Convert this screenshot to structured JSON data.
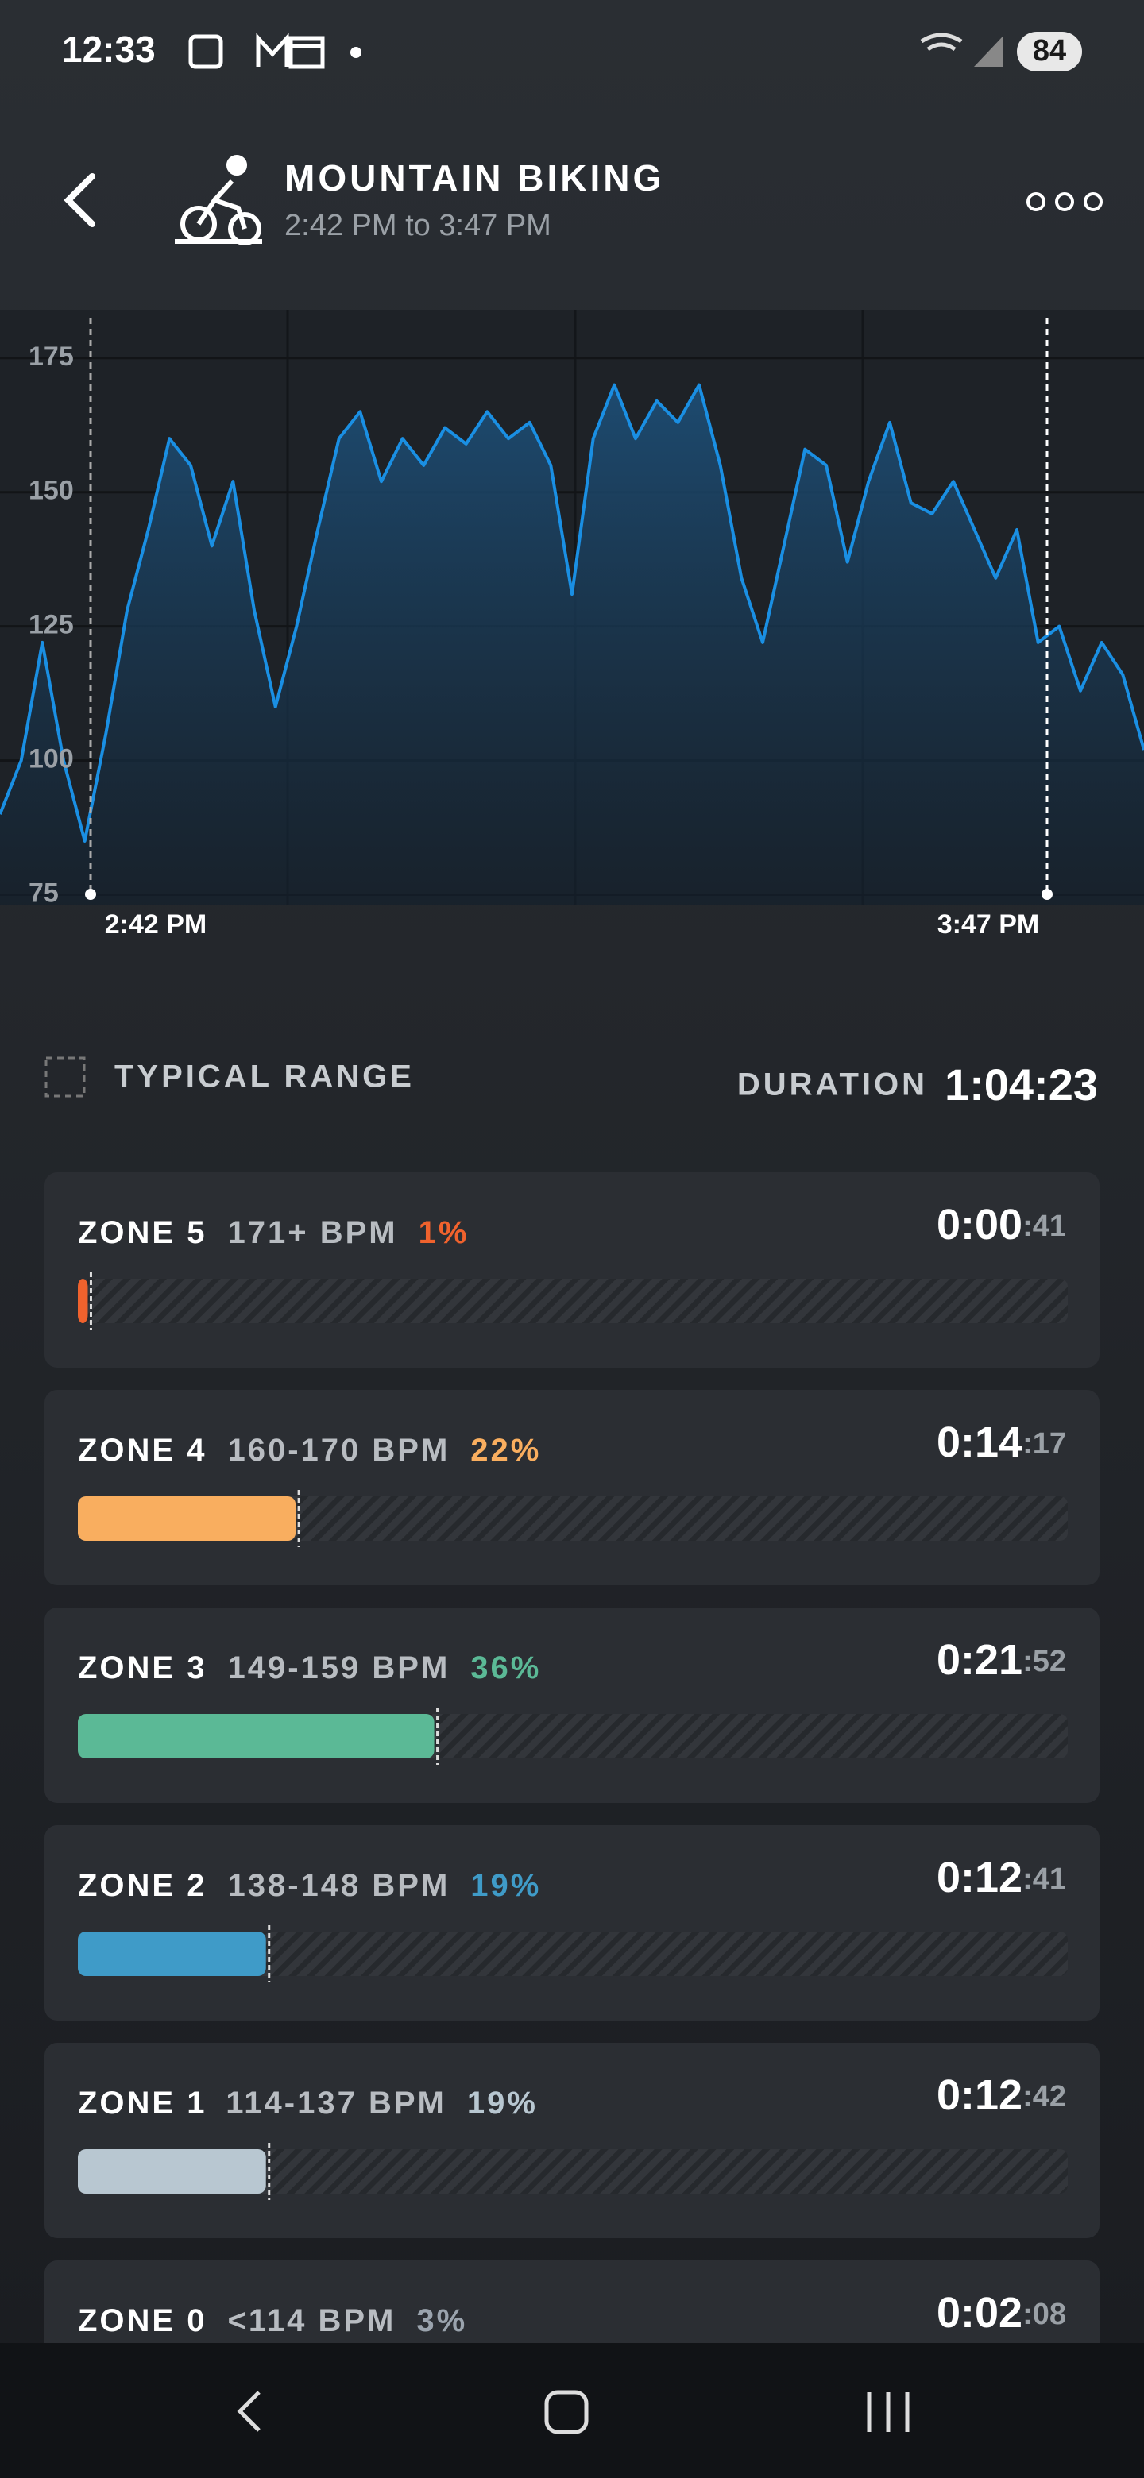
{
  "status_bar": {
    "time": "12:33",
    "battery": "84"
  },
  "header": {
    "title": "MOUNTAIN BIKING",
    "subtitle": "2:42 PM to 3:47 PM"
  },
  "chart": {
    "type": "line",
    "color": "#1a8fe3",
    "values": [
      90,
      100,
      122,
      100,
      85,
      105,
      128,
      143,
      160,
      155,
      140,
      152,
      128,
      110,
      125,
      143,
      160,
      165,
      152,
      160,
      155,
      162,
      159,
      165,
      160,
      163,
      155,
      131,
      160,
      170,
      160,
      167,
      163,
      170,
      155,
      134,
      122,
      140,
      158,
      155,
      137,
      152,
      163,
      148,
      146,
      152,
      143,
      134,
      143,
      122,
      125,
      113,
      122,
      116,
      102
    ],
    "ylim": [
      73,
      184
    ],
    "yticks": [
      75,
      100,
      125,
      150,
      175
    ],
    "markers": [
      "2:42 PM",
      "3:47 PM"
    ]
  },
  "legend": {
    "typical_range": "TYPICAL RANGE"
  },
  "duration": {
    "label": "DURATION",
    "value": "1:04:23"
  },
  "zones": [
    {
      "name": "ZONE 5",
      "range": "171+ BPM",
      "percent": {
        "value": 1,
        "label": "1%"
      },
      "time": "0:00",
      "seconds": ":41",
      "color": "#f0622d"
    },
    {
      "name": "ZONE 4",
      "range": "160-170 BPM",
      "percent": {
        "value": 22,
        "label": "22%"
      },
      "time": "0:14",
      "seconds": ":17",
      "color": "#f9ae5f"
    },
    {
      "name": "ZONE 3",
      "range": "149-159 BPM",
      "percent": {
        "value": 36,
        "label": "36%"
      },
      "time": "0:21",
      "seconds": ":52",
      "color": "#5bb996"
    },
    {
      "name": "ZONE 2",
      "range": "138-148 BPM",
      "percent": {
        "value": 19,
        "label": "19%"
      },
      "time": "0:12",
      "seconds": ":41",
      "color": "#3f9bc8"
    },
    {
      "name": "ZONE 1",
      "range": "114-137 BPM",
      "percent": {
        "value": 19,
        "label": "19%"
      },
      "time": "0:12",
      "seconds": ":42",
      "color": "#b8c7d1"
    },
    {
      "name": "ZONE 0",
      "range": "<114 BPM",
      "percent": {
        "value": 3,
        "label": "3%"
      },
      "time": "0:02",
      "seconds": ":08",
      "color": "#9aa3ad"
    }
  ]
}
